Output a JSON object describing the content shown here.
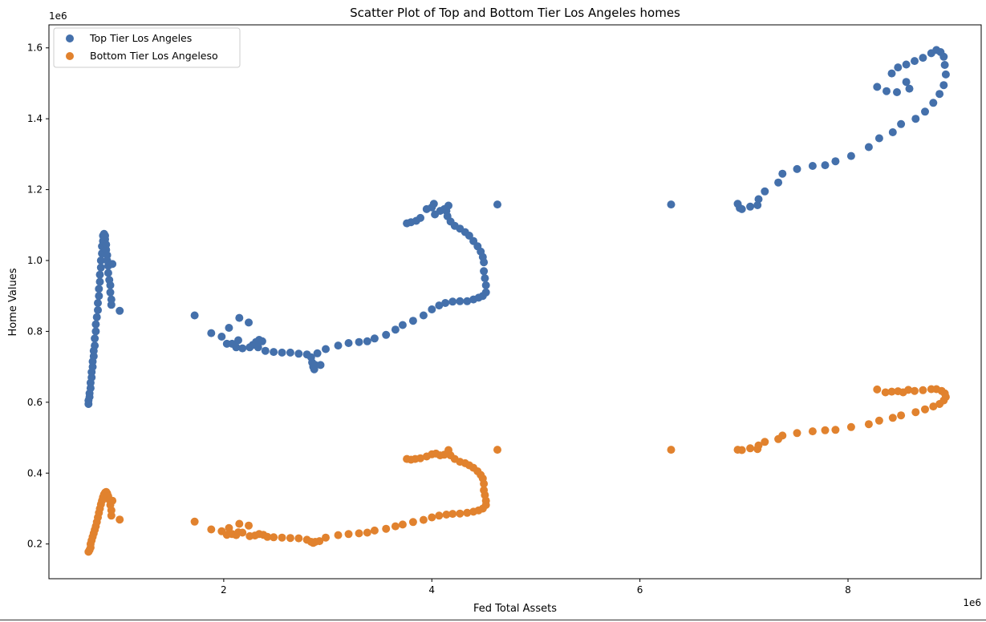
{
  "chart_data": {
    "type": "scatter",
    "title": "Scatter Plot of Top and Bottom Tier Los Angeles homes",
    "xlabel": "Fed Total Assets",
    "ylabel": "Home Values",
    "x_offset_label": "1e6",
    "y_offset_label": "1e6",
    "xlim": [
      0.32,
      9.28
    ],
    "ylim": [
      0.102,
      1.665
    ],
    "x_ticks": [
      2,
      4,
      6,
      8
    ],
    "x_tick_labels": [
      "2",
      "4",
      "6",
      "8"
    ],
    "y_ticks": [
      0.2,
      0.4,
      0.6,
      0.8,
      1.0,
      1.2,
      1.4,
      1.6
    ],
    "y_tick_labels": [
      "0.2",
      "0.4",
      "0.6",
      "0.8",
      "1.0",
      "1.2",
      "1.4",
      "1.6"
    ],
    "grid": false,
    "legend_position": "top-left",
    "series": [
      {
        "name": "Top Tier Los Angeles",
        "color": "#4470ab",
        "points": [
          [
            0.7,
            0.595
          ],
          [
            0.7,
            0.605
          ],
          [
            0.71,
            0.615
          ],
          [
            0.71,
            0.625
          ],
          [
            0.72,
            0.64
          ],
          [
            0.72,
            0.655
          ],
          [
            0.73,
            0.67
          ],
          [
            0.73,
            0.685
          ],
          [
            0.74,
            0.7
          ],
          [
            0.74,
            0.715
          ],
          [
            0.75,
            0.73
          ],
          [
            0.75,
            0.745
          ],
          [
            0.76,
            0.76
          ],
          [
            0.76,
            0.78
          ],
          [
            0.77,
            0.8
          ],
          [
            0.77,
            0.82
          ],
          [
            0.78,
            0.84
          ],
          [
            0.79,
            0.86
          ],
          [
            0.79,
            0.88
          ],
          [
            0.8,
            0.9
          ],
          [
            0.8,
            0.92
          ],
          [
            0.81,
            0.94
          ],
          [
            0.81,
            0.96
          ],
          [
            0.82,
            0.98
          ],
          [
            0.82,
            1.0
          ],
          [
            0.83,
            1.02
          ],
          [
            0.83,
            1.04
          ],
          [
            0.84,
            1.055
          ],
          [
            0.84,
            1.07
          ],
          [
            0.85,
            1.075
          ],
          [
            0.86,
            1.07
          ],
          [
            0.86,
            1.06
          ],
          [
            0.87,
            1.045
          ],
          [
            0.87,
            1.03
          ],
          [
            0.88,
            1.015
          ],
          [
            0.88,
            1.0
          ],
          [
            0.89,
            0.985
          ],
          [
            0.89,
            0.965
          ],
          [
            0.9,
            0.945
          ],
          [
            0.91,
            0.93
          ],
          [
            0.91,
            0.91
          ],
          [
            0.92,
            0.89
          ],
          [
            0.92,
            0.875
          ],
          [
            0.93,
            0.99
          ],
          [
            1.0,
            0.858
          ],
          [
            1.72,
            0.845
          ],
          [
            1.88,
            0.795
          ],
          [
            1.98,
            0.785
          ],
          [
            2.03,
            0.765
          ],
          [
            2.05,
            0.81
          ],
          [
            2.08,
            0.765
          ],
          [
            2.12,
            0.755
          ],
          [
            2.14,
            0.775
          ],
          [
            2.15,
            0.838
          ],
          [
            2.18,
            0.752
          ],
          [
            2.24,
            0.825
          ],
          [
            2.25,
            0.755
          ],
          [
            2.28,
            0.762
          ],
          [
            2.31,
            0.77
          ],
          [
            2.33,
            0.755
          ],
          [
            2.34,
            0.776
          ],
          [
            2.37,
            0.772
          ],
          [
            2.4,
            0.745
          ],
          [
            2.48,
            0.742
          ],
          [
            2.56,
            0.74
          ],
          [
            2.64,
            0.74
          ],
          [
            2.72,
            0.737
          ],
          [
            2.8,
            0.735
          ],
          [
            2.84,
            0.727
          ],
          [
            2.85,
            0.712
          ],
          [
            2.86,
            0.7
          ],
          [
            2.87,
            0.693
          ],
          [
            2.88,
            0.705
          ],
          [
            2.9,
            0.738
          ],
          [
            2.93,
            0.705
          ],
          [
            2.98,
            0.75
          ],
          [
            3.1,
            0.76
          ],
          [
            3.2,
            0.767
          ],
          [
            3.3,
            0.77
          ],
          [
            3.38,
            0.772
          ],
          [
            3.45,
            0.78
          ],
          [
            3.56,
            0.79
          ],
          [
            3.65,
            0.805
          ],
          [
            3.72,
            0.818
          ],
          [
            3.82,
            0.83
          ],
          [
            3.92,
            0.845
          ],
          [
            4.0,
            0.862
          ],
          [
            4.07,
            0.873
          ],
          [
            4.13,
            0.88
          ],
          [
            4.2,
            0.884
          ],
          [
            4.27,
            0.885
          ],
          [
            4.34,
            0.885
          ],
          [
            4.4,
            0.89
          ],
          [
            4.45,
            0.895
          ],
          [
            4.49,
            0.9
          ],
          [
            4.52,
            0.91
          ],
          [
            4.52,
            0.93
          ],
          [
            4.51,
            0.95
          ],
          [
            4.5,
            0.97
          ],
          [
            4.5,
            0.995
          ],
          [
            4.49,
            1.01
          ],
          [
            4.47,
            1.025
          ],
          [
            4.44,
            1.04
          ],
          [
            4.4,
            1.055
          ],
          [
            4.36,
            1.07
          ],
          [
            4.32,
            1.08
          ],
          [
            4.27,
            1.09
          ],
          [
            4.22,
            1.098
          ],
          [
            4.18,
            1.11
          ],
          [
            4.15,
            1.125
          ],
          [
            4.14,
            1.14
          ],
          [
            4.16,
            1.155
          ],
          [
            4.12,
            1.145
          ],
          [
            4.08,
            1.14
          ],
          [
            4.03,
            1.13
          ],
          [
            4.0,
            1.15
          ],
          [
            4.02,
            1.16
          ],
          [
            3.95,
            1.145
          ],
          [
            3.89,
            1.12
          ],
          [
            3.85,
            1.112
          ],
          [
            3.8,
            1.108
          ],
          [
            3.76,
            1.105
          ],
          [
            4.63,
            1.158
          ],
          [
            6.3,
            1.158
          ],
          [
            6.94,
            1.16
          ],
          [
            6.96,
            1.148
          ],
          [
            6.98,
            1.145
          ],
          [
            7.06,
            1.152
          ],
          [
            7.13,
            1.156
          ],
          [
            7.14,
            1.173
          ],
          [
            7.2,
            1.195
          ],
          [
            7.33,
            1.22
          ],
          [
            7.37,
            1.245
          ],
          [
            7.51,
            1.258
          ],
          [
            7.66,
            1.267
          ],
          [
            7.78,
            1.269
          ],
          [
            7.88,
            1.28
          ],
          [
            8.03,
            1.295
          ],
          [
            8.2,
            1.32
          ],
          [
            8.3,
            1.345
          ],
          [
            8.43,
            1.362
          ],
          [
            8.51,
            1.385
          ],
          [
            8.65,
            1.4
          ],
          [
            8.74,
            1.42
          ],
          [
            8.82,
            1.445
          ],
          [
            8.88,
            1.47
          ],
          [
            8.92,
            1.495
          ],
          [
            8.94,
            1.525
          ],
          [
            8.93,
            1.552
          ],
          [
            8.92,
            1.575
          ],
          [
            8.89,
            1.588
          ],
          [
            8.85,
            1.594
          ],
          [
            8.8,
            1.585
          ],
          [
            8.72,
            1.572
          ],
          [
            8.64,
            1.563
          ],
          [
            8.56,
            1.553
          ],
          [
            8.48,
            1.545
          ],
          [
            8.42,
            1.528
          ],
          [
            8.56,
            1.504
          ],
          [
            8.59,
            1.485
          ],
          [
            8.47,
            1.475
          ],
          [
            8.37,
            1.478
          ],
          [
            8.28,
            1.49
          ]
        ]
      },
      {
        "name": "Bottom Tier Los Angeleso",
        "color": "#e1822e",
        "points": [
          [
            0.7,
            0.178
          ],
          [
            0.71,
            0.183
          ],
          [
            0.72,
            0.19
          ],
          [
            0.72,
            0.2
          ],
          [
            0.73,
            0.21
          ],
          [
            0.74,
            0.22
          ],
          [
            0.75,
            0.23
          ],
          [
            0.76,
            0.24
          ],
          [
            0.77,
            0.25
          ],
          [
            0.78,
            0.262
          ],
          [
            0.79,
            0.275
          ],
          [
            0.8,
            0.288
          ],
          [
            0.81,
            0.3
          ],
          [
            0.82,
            0.312
          ],
          [
            0.83,
            0.322
          ],
          [
            0.84,
            0.332
          ],
          [
            0.85,
            0.34
          ],
          [
            0.86,
            0.345
          ],
          [
            0.87,
            0.347
          ],
          [
            0.88,
            0.343
          ],
          [
            0.89,
            0.335
          ],
          [
            0.9,
            0.325
          ],
          [
            0.91,
            0.31
          ],
          [
            0.92,
            0.295
          ],
          [
            0.92,
            0.28
          ],
          [
            0.93,
            0.322
          ],
          [
            1.0,
            0.269
          ],
          [
            1.72,
            0.263
          ],
          [
            1.88,
            0.241
          ],
          [
            1.98,
            0.236
          ],
          [
            2.03,
            0.226
          ],
          [
            2.05,
            0.245
          ],
          [
            2.08,
            0.228
          ],
          [
            2.12,
            0.225
          ],
          [
            2.14,
            0.233
          ],
          [
            2.15,
            0.257
          ],
          [
            2.18,
            0.232
          ],
          [
            2.24,
            0.252
          ],
          [
            2.25,
            0.222
          ],
          [
            2.3,
            0.224
          ],
          [
            2.34,
            0.228
          ],
          [
            2.38,
            0.226
          ],
          [
            2.42,
            0.22
          ],
          [
            2.48,
            0.219
          ],
          [
            2.56,
            0.218
          ],
          [
            2.64,
            0.217
          ],
          [
            2.72,
            0.216
          ],
          [
            2.8,
            0.212
          ],
          [
            2.84,
            0.206
          ],
          [
            2.86,
            0.203
          ],
          [
            2.88,
            0.206
          ],
          [
            2.92,
            0.208
          ],
          [
            2.98,
            0.218
          ],
          [
            3.1,
            0.225
          ],
          [
            3.2,
            0.228
          ],
          [
            3.3,
            0.23
          ],
          [
            3.38,
            0.232
          ],
          [
            3.45,
            0.238
          ],
          [
            3.56,
            0.243
          ],
          [
            3.65,
            0.25
          ],
          [
            3.72,
            0.255
          ],
          [
            3.82,
            0.262
          ],
          [
            3.92,
            0.268
          ],
          [
            4.0,
            0.275
          ],
          [
            4.07,
            0.28
          ],
          [
            4.14,
            0.283
          ],
          [
            4.2,
            0.285
          ],
          [
            4.27,
            0.286
          ],
          [
            4.34,
            0.288
          ],
          [
            4.4,
            0.291
          ],
          [
            4.45,
            0.295
          ],
          [
            4.49,
            0.3
          ],
          [
            4.52,
            0.31
          ],
          [
            4.52,
            0.322
          ],
          [
            4.51,
            0.338
          ],
          [
            4.5,
            0.352
          ],
          [
            4.5,
            0.37
          ],
          [
            4.49,
            0.385
          ],
          [
            4.47,
            0.395
          ],
          [
            4.44,
            0.405
          ],
          [
            4.4,
            0.415
          ],
          [
            4.36,
            0.422
          ],
          [
            4.32,
            0.428
          ],
          [
            4.27,
            0.432
          ],
          [
            4.22,
            0.44
          ],
          [
            4.18,
            0.45
          ],
          [
            4.16,
            0.465
          ],
          [
            4.12,
            0.452
          ],
          [
            4.08,
            0.45
          ],
          [
            4.04,
            0.455
          ],
          [
            4.0,
            0.453
          ],
          [
            3.95,
            0.447
          ],
          [
            3.89,
            0.442
          ],
          [
            3.84,
            0.44
          ],
          [
            3.8,
            0.438
          ],
          [
            3.76,
            0.44
          ],
          [
            4.63,
            0.466
          ],
          [
            6.3,
            0.466
          ],
          [
            6.94,
            0.466
          ],
          [
            6.98,
            0.465
          ],
          [
            7.06,
            0.47
          ],
          [
            7.13,
            0.468
          ],
          [
            7.14,
            0.478
          ],
          [
            7.2,
            0.488
          ],
          [
            7.33,
            0.496
          ],
          [
            7.37,
            0.506
          ],
          [
            7.51,
            0.513
          ],
          [
            7.66,
            0.518
          ],
          [
            7.78,
            0.521
          ],
          [
            7.88,
            0.522
          ],
          [
            8.03,
            0.53
          ],
          [
            8.2,
            0.538
          ],
          [
            8.3,
            0.548
          ],
          [
            8.43,
            0.556
          ],
          [
            8.51,
            0.563
          ],
          [
            8.65,
            0.572
          ],
          [
            8.74,
            0.58
          ],
          [
            8.82,
            0.588
          ],
          [
            8.88,
            0.595
          ],
          [
            8.92,
            0.605
          ],
          [
            8.94,
            0.615
          ],
          [
            8.93,
            0.625
          ],
          [
            8.9,
            0.632
          ],
          [
            8.85,
            0.637
          ],
          [
            8.8,
            0.637
          ],
          [
            8.72,
            0.634
          ],
          [
            8.64,
            0.632
          ],
          [
            8.58,
            0.635
          ],
          [
            8.53,
            0.628
          ],
          [
            8.48,
            0.631
          ],
          [
            8.42,
            0.63
          ],
          [
            8.36,
            0.628
          ],
          [
            8.28,
            0.636
          ]
        ]
      }
    ]
  }
}
